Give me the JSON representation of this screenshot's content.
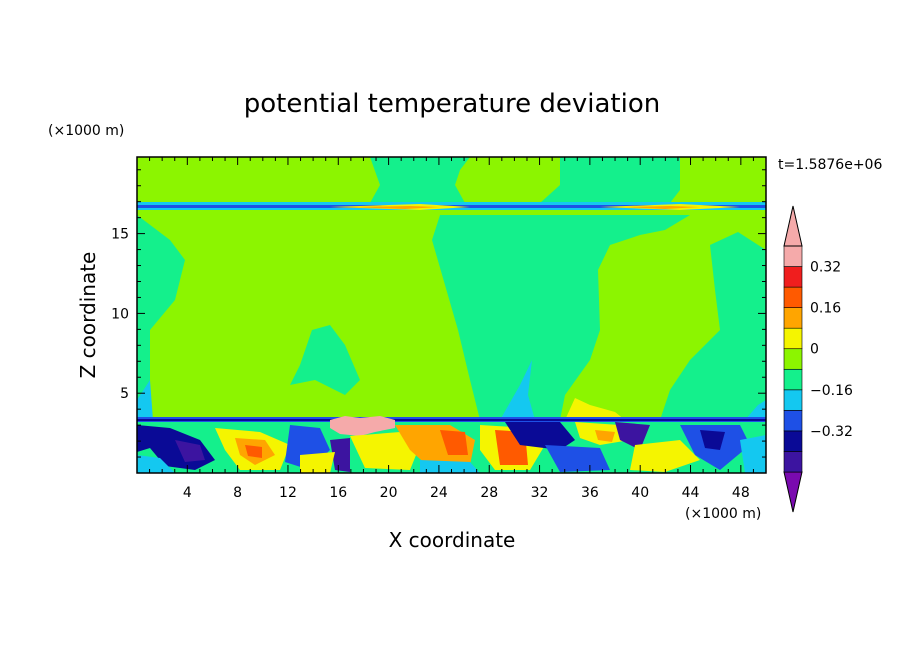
{
  "chart_data": {
    "type": "heatmap",
    "title": "potential temperature deviation",
    "xlabel": "X coordinate",
    "ylabel": "Z coordinate",
    "x_unit": "(×1000 m)",
    "y_unit": "(×1000 m)",
    "time_label": "t=1.5876e+06",
    "xlim": [
      0,
      50
    ],
    "ylim": [
      0,
      19.8
    ],
    "x_ticks": [
      4,
      8,
      12,
      16,
      20,
      24,
      28,
      32,
      36,
      40,
      44,
      48
    ],
    "x_minor_step": 1,
    "y_ticks": [
      5,
      10,
      15
    ],
    "y_minor_step": 1,
    "colorbar": {
      "levels": [
        -0.48,
        -0.4,
        -0.32,
        -0.24,
        -0.16,
        -0.08,
        0,
        0.08,
        0.16,
        0.24,
        0.32,
        0.4
      ],
      "colors": [
        "#7a0aaf",
        "#3c14a0",
        "#0a0a96",
        "#1e50e6",
        "#14c8f0",
        "#14f08c",
        "#8cf500",
        "#f5f500",
        "#ffa500",
        "#ff5a00",
        "#f01e1e",
        "#f5aaaa"
      ],
      "labels": [
        {
          "value": -0.32,
          "text": "−0.32"
        },
        {
          "value": -0.16,
          "text": "−0.16"
        },
        {
          "value": 0,
          "text": "0"
        },
        {
          "value": 0.16,
          "text": "0.16"
        },
        {
          "value": 0.32,
          "text": "0.32"
        }
      ]
    },
    "field_description": {
      "background_level": 0,
      "upper_layer_z": [
        16.4,
        16.9
      ],
      "boundary_layer_top_z": 3.6
    }
  }
}
